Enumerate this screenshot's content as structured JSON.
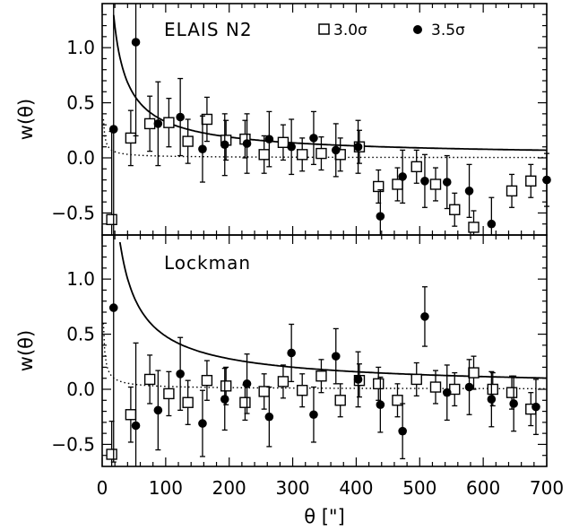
{
  "chart_data": [
    {
      "type": "scatter",
      "panel": "top",
      "title": "ELAIS  N2",
      "ylabel": "w(θ)",
      "xlabel": "",
      "xlim": [
        0,
        700
      ],
      "ylim": [
        -0.7,
        1.4
      ],
      "yticks": [
        "1.0",
        "0.5",
        "0.0",
        "−0.5"
      ],
      "ytick_values": [
        1.0,
        0.5,
        0.0,
        -0.5
      ],
      "legend": [
        {
          "label": "3.0σ",
          "marker": "square-open"
        },
        {
          "label": "3.5σ",
          "marker": "circle-filled"
        }
      ],
      "legend_position": "top-right",
      "series": [
        {
          "name": "3.0σ",
          "marker": "square-open",
          "x": [
            15,
            45,
            75,
            105,
            135,
            165,
            195,
            225,
            255,
            285,
            315,
            345,
            375,
            405,
            435,
            465,
            495,
            525,
            555,
            585,
            645,
            675
          ],
          "y": [
            -0.56,
            0.18,
            0.31,
            0.32,
            0.15,
            0.35,
            0.16,
            0.17,
            0.03,
            0.14,
            0.03,
            0.04,
            0.03,
            0.1,
            -0.26,
            -0.24,
            -0.08,
            -0.24,
            -0.47,
            -0.63,
            -0.3,
            -0.21
          ],
          "err": [
            0.8,
            0.25,
            0.25,
            0.22,
            0.2,
            0.2,
            0.18,
            0.17,
            0.17,
            0.16,
            0.15,
            0.15,
            0.15,
            0.15,
            0.15,
            0.15,
            0.15,
            0.15,
            0.15,
            0.15,
            0.15,
            0.15
          ]
        },
        {
          "name": "3.5σ",
          "marker": "circle-filled",
          "x": [
            18,
            53,
            88,
            123,
            158,
            193,
            228,
            263,
            298,
            333,
            368,
            403,
            438,
            473,
            508,
            543,
            578,
            613,
            700
          ],
          "y": [
            0.26,
            1.05,
            0.31,
            0.37,
            0.08,
            0.12,
            0.13,
            0.17,
            0.1,
            0.18,
            0.07,
            0.1,
            -0.53,
            -0.17,
            -0.21,
            -0.22,
            -0.3,
            -0.6,
            -0.2
          ],
          "err": [
            1.2,
            0.85,
            0.38,
            0.35,
            0.3,
            0.28,
            0.27,
            0.25,
            0.25,
            0.24,
            0.24,
            0.24,
            0.24,
            0.24,
            0.24,
            0.24,
            0.24,
            0.24,
            0.24
          ]
        }
      ],
      "fit_line": {
        "style": "solid",
        "A": 1.5,
        "gamma": 0.8
      },
      "fit_dotted": {
        "style": "dotted",
        "A": 0.07,
        "gamma": 0.8,
        "offset": 0.0
      }
    },
    {
      "type": "scatter",
      "panel": "bottom",
      "title": "Lockman",
      "ylabel": "w(θ)",
      "xlabel": "θ [\"]",
      "xlim": [
        0,
        700
      ],
      "ylim": [
        -0.7,
        1.4
      ],
      "xticks": [
        "0",
        "100",
        "200",
        "300",
        "400",
        "500",
        "600",
        "700"
      ],
      "xtick_values": [
        0,
        100,
        200,
        300,
        400,
        500,
        600,
        700
      ],
      "yticks": [
        "1.0",
        "0.5",
        "0.0",
        "−0.5"
      ],
      "ytick_values": [
        1.0,
        0.5,
        0.0,
        -0.5
      ],
      "series": [
        {
          "name": "3.0σ",
          "marker": "square-open",
          "x": [
            15,
            45,
            75,
            105,
            135,
            165,
            195,
            225,
            255,
            285,
            315,
            345,
            375,
            405,
            435,
            465,
            495,
            525,
            555,
            585,
            615,
            645,
            675
          ],
          "y": [
            -0.59,
            -0.23,
            0.09,
            -0.04,
            -0.12,
            0.08,
            0.03,
            -0.12,
            -0.02,
            0.07,
            -0.01,
            0.12,
            -0.1,
            0.08,
            0.05,
            -0.1,
            0.09,
            0.02,
            0.0,
            0.15,
            0.0,
            -0.03,
            -0.18
          ],
          "err": [
            0.3,
            0.25,
            0.22,
            0.2,
            0.2,
            0.18,
            0.17,
            0.16,
            0.16,
            0.15,
            0.15,
            0.15,
            0.15,
            0.15,
            0.15,
            0.15,
            0.15,
            0.15,
            0.15,
            0.15,
            0.15,
            0.15,
            0.15
          ]
        },
        {
          "name": "3.5σ",
          "marker": "circle-filled",
          "x": [
            18,
            53,
            88,
            123,
            158,
            193,
            228,
            263,
            298,
            333,
            368,
            403,
            438,
            473,
            508,
            543,
            578,
            613,
            648,
            683
          ],
          "y": [
            0.74,
            -0.33,
            -0.19,
            0.14,
            -0.31,
            -0.09,
            0.05,
            -0.25,
            0.33,
            -0.23,
            0.3,
            0.09,
            -0.14,
            -0.38,
            0.66,
            -0.03,
            0.02,
            -0.09,
            -0.13,
            -0.16
          ],
          "err": [
            1.4,
            0.75,
            0.36,
            0.33,
            0.3,
            0.28,
            0.27,
            0.27,
            0.26,
            0.25,
            0.25,
            0.25,
            0.25,
            0.25,
            0.27,
            0.25,
            0.25,
            0.25,
            0.25,
            0.25
          ]
        }
      ],
      "fit_line": {
        "style": "solid",
        "A": 2.2,
        "gamma": 0.8
      },
      "fit_dotted": {
        "style": "dotted",
        "A": 0.12,
        "gamma": 0.8,
        "offset": 0.0
      }
    }
  ]
}
